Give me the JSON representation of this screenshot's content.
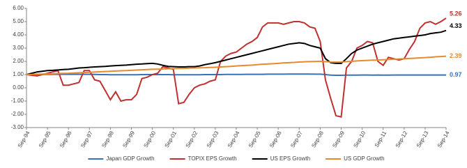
{
  "chart_data": {
    "type": "line",
    "categories": [
      "Sep-94",
      null,
      null,
      null,
      "Sep-95",
      null,
      null,
      null,
      "Sep-96",
      null,
      null,
      null,
      "Sep-97",
      null,
      null,
      null,
      "Sep-98",
      null,
      null,
      null,
      "Sep-99",
      null,
      null,
      null,
      "Sep-00",
      null,
      null,
      null,
      "Sep-01",
      null,
      null,
      null,
      "Sep-02",
      null,
      null,
      null,
      "Sep-03",
      null,
      null,
      null,
      "Sep-04",
      null,
      null,
      null,
      "Sep-05",
      null,
      null,
      null,
      "Sep-06",
      null,
      null,
      null,
      "Sep-07",
      null,
      null,
      null,
      "Sep-08",
      null,
      null,
      null,
      "Sep-09",
      null,
      null,
      null,
      "Sep-10",
      null,
      null,
      null,
      "Sep-11",
      null,
      null,
      null,
      "Sep-12",
      null,
      null,
      null,
      "Sep-13",
      null,
      null,
      null,
      "Sep-14"
    ],
    "series": [
      {
        "name": "Japan GDP Growth",
        "color": "#3a72b8",
        "values": [
          1.0,
          1.0,
          1.0,
          1.01,
          1.01,
          1.01,
          1.02,
          1.02,
          1.02,
          1.02,
          1.02,
          1.02,
          1.02,
          1.01,
          1.0,
          1.0,
          0.99,
          0.99,
          0.99,
          0.99,
          0.99,
          0.99,
          1.0,
          1.0,
          1.0,
          1.0,
          1.0,
          1.0,
          0.99,
          0.99,
          0.99,
          0.99,
          0.99,
          0.99,
          1.0,
          1.0,
          1.0,
          1.0,
          1.01,
          1.01,
          1.01,
          1.01,
          1.02,
          1.02,
          1.02,
          1.02,
          1.03,
          1.03,
          1.03,
          1.03,
          1.04,
          1.04,
          1.04,
          1.04,
          1.04,
          1.03,
          1.03,
          1.0,
          0.96,
          0.95,
          0.95,
          0.96,
          0.96,
          0.96,
          0.97,
          0.97,
          0.96,
          0.97,
          0.96,
          0.96,
          0.97,
          0.97,
          0.97,
          0.97,
          0.97,
          0.97,
          0.97,
          0.97,
          0.97,
          0.97,
          0.97
        ]
      },
      {
        "name": "TOPIX EPS Growth",
        "color": "#c0302f",
        "values": [
          1.0,
          0.95,
          0.9,
          1.0,
          1.1,
          1.2,
          1.3,
          0.2,
          0.2,
          0.3,
          0.4,
          1.3,
          1.3,
          0.6,
          0.5,
          -0.2,
          -0.9,
          -0.3,
          -1.0,
          -0.9,
          -0.9,
          -0.5,
          0.7,
          0.8,
          1.0,
          1.1,
          1.6,
          1.5,
          1.4,
          -1.2,
          -1.1,
          -0.5,
          0.0,
          0.2,
          0.3,
          0.5,
          0.6,
          2.0,
          2.4,
          2.6,
          2.7,
          3.0,
          3.3,
          3.5,
          3.8,
          4.6,
          4.9,
          4.9,
          4.9,
          4.8,
          4.9,
          5.0,
          5.0,
          4.9,
          4.6,
          4.5,
          3.5,
          0.6,
          -0.8,
          -2.1,
          -2.2,
          1.5,
          2.0,
          3.0,
          3.2,
          3.5,
          3.4,
          2.0,
          1.7,
          2.3,
          2.2,
          2.1,
          2.2,
          2.9,
          3.5,
          4.5,
          4.9,
          5.0,
          4.8,
          5.0,
          5.26
        ]
      },
      {
        "name": "US EPS Growth",
        "color": "#000000",
        "values": [
          1.0,
          1.1,
          1.2,
          1.25,
          1.3,
          1.32,
          1.35,
          1.38,
          1.4,
          1.45,
          1.5,
          1.52,
          1.55,
          1.58,
          1.6,
          1.62,
          1.65,
          1.68,
          1.7,
          1.72,
          1.75,
          1.78,
          1.8,
          1.83,
          1.85,
          1.8,
          1.7,
          1.62,
          1.6,
          1.58,
          1.58,
          1.6,
          1.6,
          1.65,
          1.75,
          1.82,
          1.9,
          2.0,
          2.1,
          2.2,
          2.3,
          2.4,
          2.5,
          2.6,
          2.7,
          2.8,
          2.9,
          3.0,
          3.1,
          3.2,
          3.3,
          3.35,
          3.4,
          3.35,
          3.2,
          3.1,
          3.0,
          2.2,
          1.9,
          1.85,
          1.85,
          2.2,
          2.6,
          2.85,
          3.0,
          3.15,
          3.3,
          3.4,
          3.5,
          3.6,
          3.7,
          3.75,
          3.8,
          3.85,
          3.9,
          3.95,
          4.0,
          4.1,
          4.15,
          4.2,
          4.33
        ]
      },
      {
        "name": "US GDP Growth",
        "color": "#e8892b",
        "values": [
          1.0,
          1.01,
          1.03,
          1.04,
          1.05,
          1.06,
          1.08,
          1.09,
          1.1,
          1.12,
          1.14,
          1.15,
          1.17,
          1.19,
          1.21,
          1.23,
          1.25,
          1.27,
          1.29,
          1.3,
          1.32,
          1.34,
          1.36,
          1.38,
          1.4,
          1.41,
          1.42,
          1.44,
          1.45,
          1.46,
          1.47,
          1.49,
          1.5,
          1.51,
          1.52,
          1.54,
          1.55,
          1.58,
          1.6,
          1.62,
          1.65,
          1.68,
          1.7,
          1.72,
          1.75,
          1.78,
          1.8,
          1.82,
          1.85,
          1.88,
          1.9,
          1.92,
          1.95,
          1.97,
          1.98,
          1.99,
          2.0,
          1.98,
          1.95,
          1.94,
          1.95,
          1.98,
          2.0,
          2.03,
          2.05,
          2.07,
          2.09,
          2.1,
          2.12,
          2.14,
          2.16,
          2.18,
          2.2,
          2.22,
          2.24,
          2.26,
          2.28,
          2.31,
          2.34,
          2.36,
          2.39
        ]
      }
    ],
    "ylim": [
      -3,
      6
    ],
    "yticks": [
      {
        "value": -3,
        "label": "-3.00"
      },
      {
        "value": -2,
        "label": "-2.00"
      },
      {
        "value": -1,
        "label": "-1.00"
      },
      {
        "value": 0,
        "label": "0.00"
      },
      {
        "value": 1,
        "label": "1.00"
      },
      {
        "value": 2,
        "label": "2.00"
      },
      {
        "value": 3,
        "label": "3.00"
      },
      {
        "value": 4,
        "label": "4.00"
      },
      {
        "value": 5,
        "label": "5.00"
      },
      {
        "value": 6,
        "label": "6.00"
      }
    ],
    "legend": "bottom"
  }
}
